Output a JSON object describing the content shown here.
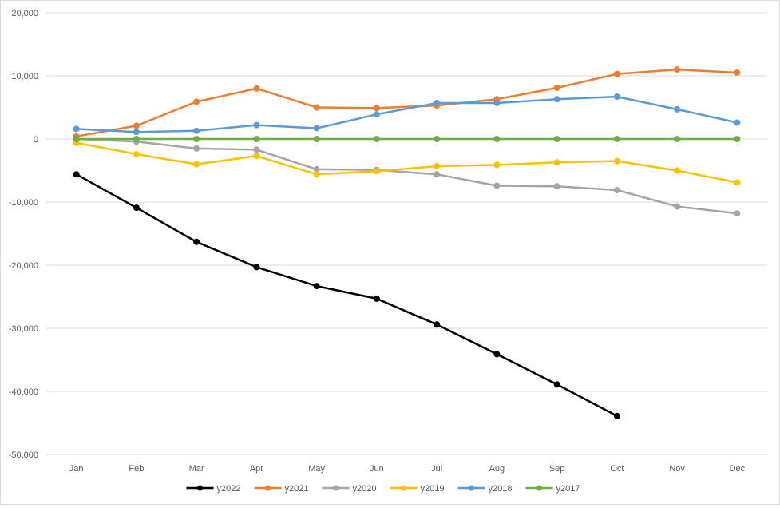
{
  "chart_data": {
    "type": "line",
    "title": "",
    "xlabel": "",
    "ylabel": "",
    "categories": [
      "Jan",
      "Feb",
      "Mar",
      "Apr",
      "May",
      "Jun",
      "Jul",
      "Aug",
      "Sep",
      "Oct",
      "Nov",
      "Dec"
    ],
    "ylim": [
      -50000,
      20000
    ],
    "yticks": [
      20000,
      10000,
      0,
      -10000,
      -20000,
      -30000,
      -40000,
      -50000
    ],
    "ytick_labels": [
      "20,000",
      "10,000",
      "0",
      "-10,000",
      "-20,000",
      "-30,000",
      "-40,000",
      "-50,000"
    ],
    "grid": true,
    "legend_position": "bottom",
    "series": [
      {
        "name": "y2022",
        "color": "#000000",
        "values": [
          -5600,
          -10900,
          -16300,
          -20300,
          -23300,
          -25300,
          -29400,
          -34100,
          -38900,
          -43900,
          null,
          null
        ]
      },
      {
        "name": "y2021",
        "color": "#ED7D31",
        "values": [
          400,
          2100,
          5900,
          8000,
          5000,
          4900,
          5300,
          6300,
          8100,
          10300,
          11000,
          10500
        ]
      },
      {
        "name": "y2020",
        "color": "#A5A5A5",
        "values": [
          0,
          -400,
          -1500,
          -1700,
          -4800,
          -4900,
          -5600,
          -7400,
          -7500,
          -8100,
          -10700,
          -11800
        ]
      },
      {
        "name": "y2019",
        "color": "#FFC000",
        "values": [
          -600,
          -2400,
          -4000,
          -2700,
          -5600,
          -5100,
          -4300,
          -4100,
          -3700,
          -3500,
          -5000,
          -6900
        ]
      },
      {
        "name": "y2018",
        "color": "#5B9BD5",
        "values": [
          1600,
          1100,
          1300,
          2200,
          1700,
          3900,
          5700,
          5700,
          6300,
          6700,
          4700,
          2600
        ]
      },
      {
        "name": "y2017",
        "color": "#70AD47",
        "values": [
          0,
          0,
          0,
          0,
          0,
          0,
          0,
          0,
          0,
          0,
          0,
          0
        ]
      }
    ]
  }
}
